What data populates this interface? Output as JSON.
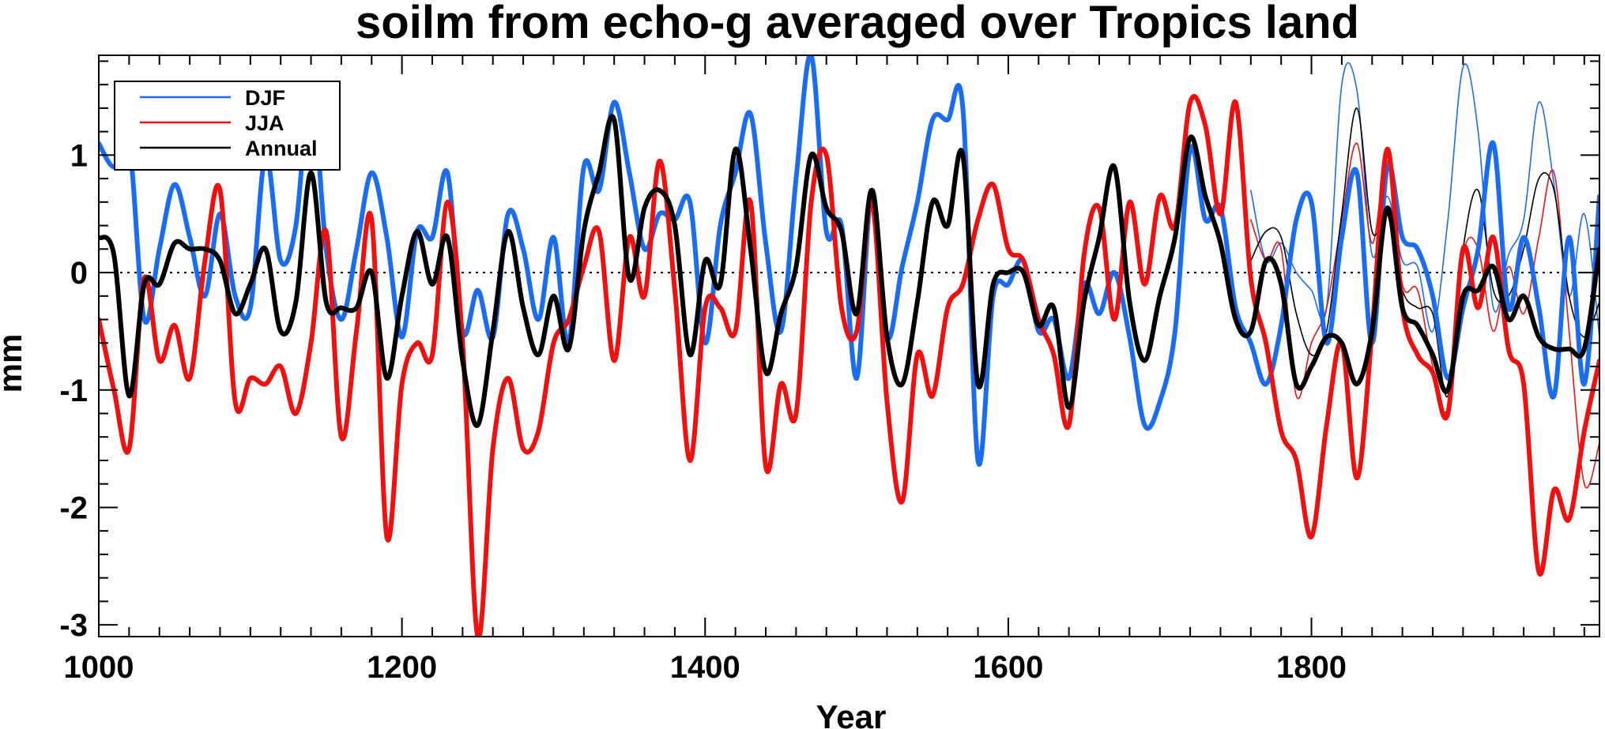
{
  "chart_data": {
    "type": "line",
    "title": "soilm from echo-g averaged over Tropics land",
    "xlabel": "Year",
    "ylabel": "mm",
    "xlim": [
      1000,
      1990
    ],
    "ylim": [
      -3.1,
      1.85
    ],
    "xticks": [
      1000,
      1200,
      1400,
      1600,
      1800
    ],
    "yticks": [
      1,
      0,
      -1,
      -2,
      -3
    ],
    "zero_line": "dotted",
    "legend": {
      "placement": "top-left",
      "entries": [
        "DJF",
        "JJA",
        "Annual"
      ]
    },
    "colors": {
      "DJF": "#1a6cf0",
      "JJA": "#f01010",
      "Annual": "#000000"
    },
    "series": [
      {
        "name": "DJF",
        "style": "thick",
        "x": [
          1000,
          1010,
          1020,
          1030,
          1040,
          1050,
          1060,
          1070,
          1080,
          1090,
          1100,
          1110,
          1120,
          1130,
          1140,
          1150,
          1160,
          1170,
          1180,
          1190,
          1200,
          1210,
          1220,
          1230,
          1240,
          1250,
          1260,
          1270,
          1280,
          1290,
          1300,
          1310,
          1320,
          1330,
          1340,
          1350,
          1360,
          1370,
          1380,
          1390,
          1400,
          1410,
          1420,
          1430,
          1440,
          1450,
          1460,
          1470,
          1480,
          1490,
          1500,
          1510,
          1520,
          1530,
          1540,
          1550,
          1560,
          1570,
          1580,
          1590,
          1600,
          1610,
          1620,
          1630,
          1640,
          1650,
          1660,
          1670,
          1680,
          1690,
          1700,
          1710,
          1720,
          1730,
          1740,
          1750,
          1760,
          1770,
          1780,
          1790,
          1800,
          1810,
          1820,
          1830,
          1840,
          1850,
          1860,
          1870,
          1880,
          1890,
          1900,
          1910,
          1920,
          1930,
          1940,
          1950,
          1960,
          1970,
          1980,
          1990
        ],
        "values": [
          1.1,
          0.9,
          1.1,
          -0.4,
          0.2,
          0.75,
          0.3,
          -0.2,
          0.5,
          -0.2,
          -0.3,
          1.0,
          0.1,
          0.4,
          1.6,
          0.2,
          -0.4,
          0.2,
          0.85,
          0.3,
          -0.55,
          0.35,
          0.3,
          0.85,
          -0.5,
          -0.15,
          -0.55,
          0.5,
          0.2,
          -0.4,
          0.3,
          -0.6,
          0.9,
          0.7,
          1.45,
          0.85,
          0.2,
          0.5,
          0.45,
          0.6,
          -0.6,
          0.4,
          0.85,
          1.35,
          0.25,
          -0.5,
          0.8,
          1.85,
          0.35,
          0.4,
          -0.9,
          0.7,
          -0.55,
          0.05,
          0.6,
          1.3,
          1.3,
          1.4,
          -1.6,
          -0.2,
          -0.1,
          0.1,
          -0.5,
          -0.4,
          -0.9,
          -0.1,
          -0.35,
          0.0,
          -0.55,
          -1.3,
          -1.1,
          -0.5,
          1.05,
          0.45,
          0.55,
          -0.3,
          -0.6,
          -0.95,
          -0.45,
          0.45,
          0.6,
          -0.6,
          0.3,
          0.85,
          -0.6,
          0.9,
          0.3,
          0.2,
          -0.2,
          -0.9,
          -0.3,
          0.2,
          1.1,
          -0.3,
          0.3,
          -0.3,
          -1.05,
          0.3,
          -0.95,
          0.65
        ]
      },
      {
        "name": "JJA",
        "style": "thick",
        "x": [
          1000,
          1010,
          1020,
          1030,
          1040,
          1050,
          1060,
          1070,
          1080,
          1090,
          1100,
          1110,
          1120,
          1130,
          1140,
          1150,
          1160,
          1170,
          1180,
          1190,
          1200,
          1210,
          1220,
          1230,
          1240,
          1250,
          1260,
          1270,
          1280,
          1290,
          1300,
          1310,
          1320,
          1330,
          1340,
          1350,
          1360,
          1370,
          1380,
          1390,
          1400,
          1410,
          1420,
          1430,
          1440,
          1450,
          1460,
          1470,
          1480,
          1490,
          1500,
          1510,
          1520,
          1530,
          1540,
          1550,
          1560,
          1570,
          1580,
          1590,
          1600,
          1610,
          1620,
          1630,
          1640,
          1650,
          1660,
          1670,
          1680,
          1690,
          1700,
          1710,
          1720,
          1730,
          1740,
          1750,
          1760,
          1770,
          1780,
          1790,
          1800,
          1810,
          1820,
          1830,
          1840,
          1850,
          1860,
          1870,
          1880,
          1890,
          1900,
          1910,
          1920,
          1930,
          1940,
          1950,
          1960,
          1970,
          1980,
          1990
        ],
        "values": [
          -0.4,
          -1.0,
          -1.5,
          -0.05,
          -0.75,
          -0.45,
          -0.9,
          0.1,
          0.7,
          -1.1,
          -0.9,
          -0.95,
          -0.8,
          -1.2,
          -0.6,
          0.35,
          -1.4,
          -0.5,
          0.45,
          -2.25,
          -0.95,
          -0.6,
          -0.7,
          0.6,
          -0.6,
          -3.1,
          -1.5,
          -0.9,
          -1.5,
          -1.35,
          -0.6,
          -0.4,
          0.05,
          0.35,
          -0.75,
          0.3,
          -0.2,
          0.95,
          -0.15,
          -1.6,
          -0.3,
          -0.3,
          -0.5,
          0.6,
          -1.65,
          -0.95,
          -1.2,
          0.6,
          1.0,
          -0.3,
          -0.5,
          0.6,
          -1.1,
          -1.95,
          -0.7,
          -1.05,
          -0.3,
          -0.1,
          0.45,
          0.75,
          0.2,
          0.1,
          -0.4,
          -0.7,
          -1.3,
          0.15,
          0.55,
          -0.4,
          0.6,
          -0.1,
          0.65,
          0.4,
          1.45,
          1.25,
          0.5,
          1.45,
          -0.05,
          -0.6,
          -1.35,
          -1.6,
          -2.25,
          -1.3,
          -0.6,
          -1.75,
          -0.5,
          1.05,
          -0.3,
          -0.7,
          -0.85,
          -1.2,
          0.2,
          -0.3,
          0.3,
          -0.65,
          -0.95,
          -2.55,
          -1.85,
          -2.1,
          -1.35,
          -0.75
        ]
      },
      {
        "name": "Annual",
        "style": "thick",
        "x": [
          1000,
          1010,
          1020,
          1030,
          1040,
          1050,
          1060,
          1070,
          1080,
          1090,
          1100,
          1110,
          1120,
          1130,
          1140,
          1150,
          1160,
          1170,
          1180,
          1190,
          1200,
          1210,
          1220,
          1230,
          1240,
          1250,
          1260,
          1270,
          1280,
          1290,
          1300,
          1310,
          1320,
          1330,
          1340,
          1350,
          1360,
          1370,
          1380,
          1390,
          1400,
          1410,
          1420,
          1430,
          1440,
          1450,
          1460,
          1470,
          1480,
          1490,
          1500,
          1510,
          1520,
          1530,
          1540,
          1550,
          1560,
          1570,
          1580,
          1590,
          1600,
          1610,
          1620,
          1630,
          1640,
          1650,
          1660,
          1670,
          1680,
          1690,
          1700,
          1710,
          1720,
          1730,
          1740,
          1750,
          1760,
          1770,
          1780,
          1790,
          1800,
          1810,
          1820,
          1830,
          1840,
          1850,
          1860,
          1870,
          1880,
          1890,
          1900,
          1910,
          1920,
          1930,
          1940,
          1950,
          1960,
          1970,
          1980,
          1990
        ],
        "values": [
          0.3,
          0.15,
          -1.05,
          -0.1,
          -0.1,
          0.25,
          0.2,
          0.2,
          0.1,
          -0.35,
          -0.1,
          0.2,
          -0.5,
          -0.25,
          0.85,
          -0.25,
          -0.3,
          -0.3,
          0.0,
          -0.9,
          -0.2,
          0.35,
          -0.1,
          0.3,
          -0.75,
          -1.3,
          -0.5,
          0.35,
          -0.3,
          -0.7,
          -0.2,
          -0.65,
          0.35,
          0.85,
          1.3,
          -0.05,
          0.55,
          0.7,
          0.4,
          -0.7,
          0.1,
          -0.1,
          1.05,
          0.2,
          -0.85,
          -0.35,
          0.05,
          1.0,
          0.55,
          0.35,
          -0.35,
          0.7,
          -0.55,
          -0.95,
          -0.25,
          0.6,
          0.4,
          1.0,
          -0.95,
          -0.1,
          0.0,
          0.0,
          -0.45,
          -0.3,
          -1.15,
          -0.25,
          0.3,
          0.9,
          -0.25,
          -0.75,
          -0.2,
          0.3,
          1.15,
          0.65,
          0.25,
          -0.4,
          -0.5,
          0.1,
          -0.1,
          -0.95,
          -0.8,
          -0.55,
          -0.6,
          -0.95,
          -0.5,
          0.55,
          -0.3,
          -0.45,
          -0.7,
          -1.0,
          -0.2,
          -0.15,
          0.05,
          -0.4,
          -0.2,
          -0.55,
          -0.65,
          -0.65,
          -0.65,
          0.2
        ]
      },
      {
        "name": "DJF (thin)",
        "style": "thin",
        "x": [
          1760,
          1770,
          1780,
          1790,
          1800,
          1810,
          1820,
          1830,
          1840,
          1850,
          1860,
          1870,
          1880,
          1890,
          1900,
          1910,
          1920,
          1930,
          1940,
          1950,
          1960,
          1970,
          1980,
          1990
        ],
        "values": [
          0.7,
          0.1,
          0.25,
          0.0,
          -0.15,
          -0.3,
          1.6,
          1.55,
          0.15,
          0.65,
          0.1,
          0.05,
          -0.5,
          0.45,
          1.75,
          1.2,
          -0.3,
          0.15,
          0.45,
          1.45,
          0.75,
          -0.2,
          0.5,
          -0.55
        ]
      },
      {
        "name": "JJA (thin)",
        "style": "thin",
        "x": [
          1760,
          1770,
          1780,
          1790,
          1800,
          1810,
          1820,
          1830,
          1840,
          1850,
          1860,
          1870,
          1880,
          1890,
          1900,
          1910,
          1920,
          1930,
          1940,
          1950,
          1960,
          1970,
          1980,
          1990
        ],
        "values": [
          0.45,
          0.1,
          0.2,
          -1.05,
          -0.6,
          -0.3,
          0.45,
          1.1,
          0.25,
          0.95,
          -0.1,
          -0.15,
          -0.8,
          -1.15,
          0.15,
          0.2,
          -0.5,
          0.05,
          -0.35,
          0.3,
          0.85,
          -0.5,
          -1.8,
          -1.45
        ]
      },
      {
        "name": "Annual (thin)",
        "style": "thin",
        "x": [
          1760,
          1770,
          1780,
          1790,
          1800,
          1810,
          1820,
          1830,
          1840,
          1850,
          1860,
          1870,
          1880,
          1890,
          1900,
          1910,
          1920,
          1930,
          1940,
          1950,
          1960,
          1970,
          1980,
          1990
        ],
        "values": [
          0.1,
          0.35,
          0.3,
          -0.35,
          -0.7,
          -0.5,
          0.5,
          1.4,
          0.35,
          0.5,
          -0.15,
          -0.3,
          -0.35,
          -1.05,
          0.2,
          0.7,
          -0.15,
          -0.2,
          0.2,
          0.8,
          0.7,
          -0.2,
          -0.55,
          -0.25
        ]
      }
    ]
  }
}
